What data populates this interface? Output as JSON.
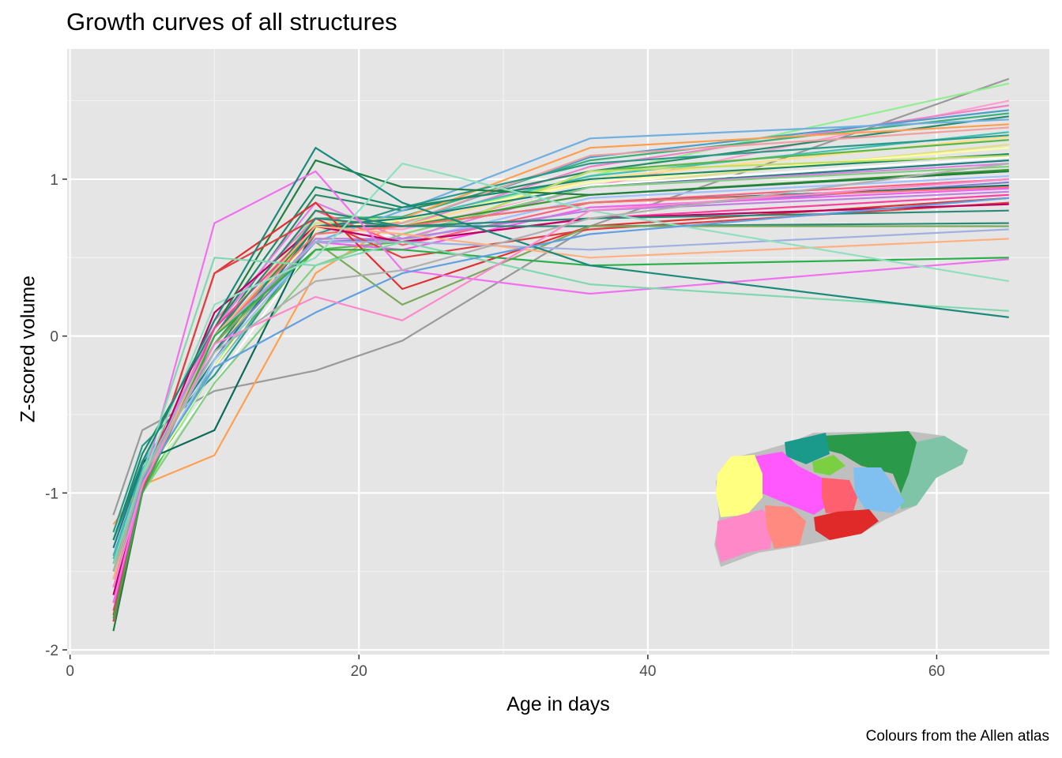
{
  "chart_data": {
    "type": "line",
    "title": "Growth curves of all structures",
    "xlabel": "Age in days",
    "ylabel": "Z-scored volume",
    "caption": "Colours from the Allen atlas",
    "xlim": [
      -0.2,
      67.8
    ],
    "ylim": [
      -2.03,
      1.83
    ],
    "x_ticks": [
      0,
      20,
      40,
      60
    ],
    "y_ticks": [
      -2,
      -1,
      0,
      1
    ],
    "x_tick_labels": [
      "0",
      "20",
      "40",
      "60"
    ],
    "y_tick_labels": [
      "-2",
      "-1",
      "0",
      "1"
    ],
    "grid": true,
    "legend": "none",
    "x": [
      3,
      5,
      10,
      17,
      23,
      36,
      65
    ],
    "series": [
      {
        "color": "#9a9a9a",
        "values": [
          -1.14,
          -0.6,
          -0.35,
          -0.22,
          -0.03,
          0.7,
          1.64
        ]
      },
      {
        "color": "#90ee90",
        "values": [
          -1.65,
          -1.0,
          -0.2,
          0.8,
          0.72,
          1.02,
          1.61
        ]
      },
      {
        "color": "#ff9ecf",
        "values": [
          -1.55,
          -0.95,
          0.05,
          0.7,
          0.68,
          0.95,
          1.5
        ]
      },
      {
        "color": "#ef80c8",
        "values": [
          -1.6,
          -0.98,
          0.1,
          0.75,
          0.7,
          1.08,
          1.47
        ]
      },
      {
        "color": "#4a9fc8",
        "values": [
          -1.4,
          -0.85,
          -0.1,
          0.68,
          0.72,
          1.14,
          1.44
        ]
      },
      {
        "color": "#3ab07a",
        "values": [
          -1.5,
          -0.9,
          -0.05,
          0.75,
          0.76,
          1.12,
          1.42
        ]
      },
      {
        "color": "#2a8a6a",
        "values": [
          -1.45,
          -0.88,
          0.0,
          0.9,
          0.8,
          1.05,
          1.4
        ]
      },
      {
        "color": "#6fb0e0",
        "values": [
          -1.35,
          -0.8,
          -0.2,
          0.6,
          0.8,
          1.26,
          1.38
        ]
      },
      {
        "color": "#ffa050",
        "values": [
          -1.2,
          -0.95,
          -0.76,
          0.4,
          0.75,
          1.2,
          1.35
        ]
      },
      {
        "color": "#f0a0a0",
        "values": [
          -1.5,
          -0.9,
          0.0,
          0.7,
          0.72,
          1.15,
          1.33
        ]
      },
      {
        "color": "#40c0b0",
        "values": [
          -1.42,
          -0.86,
          -0.05,
          0.72,
          0.74,
          1.02,
          1.3
        ]
      },
      {
        "color": "#2a9a8a",
        "values": [
          -1.25,
          -0.7,
          -0.25,
          0.65,
          0.82,
          1.1,
          1.28
        ]
      },
      {
        "color": "#ffe080",
        "values": [
          -1.55,
          -0.92,
          -0.1,
          0.7,
          0.7,
          1.0,
          1.27
        ]
      },
      {
        "color": "#5ab84a",
        "values": [
          -1.7,
          -1.0,
          -0.15,
          0.55,
          0.6,
          1.05,
          1.25
        ]
      },
      {
        "color": "#e0e080",
        "values": [
          -1.5,
          -0.9,
          0.05,
          0.72,
          0.75,
          0.95,
          1.22
        ]
      },
      {
        "color": "#ffffa0",
        "values": [
          -1.6,
          -0.95,
          -0.2,
          0.68,
          0.74,
          0.98,
          1.2
        ]
      },
      {
        "color": "#1a8a6a",
        "values": [
          -1.3,
          -0.75,
          0.05,
          0.95,
          0.82,
          1.0,
          1.16
        ]
      },
      {
        "color": "#c0e060",
        "values": [
          -1.5,
          -0.92,
          -0.1,
          0.62,
          0.6,
          1.05,
          1.15
        ]
      },
      {
        "color": "#ffffff",
        "values": [
          -1.58,
          -0.93,
          -0.3,
          0.6,
          0.65,
          0.96,
          1.14
        ]
      },
      {
        "color": "#1a8080",
        "values": [
          -1.35,
          -0.82,
          -0.15,
          0.7,
          0.75,
          0.95,
          1.12
        ]
      },
      {
        "color": "#e080e0",
        "values": [
          -1.6,
          -0.9,
          0.05,
          0.85,
          0.62,
          0.95,
          1.1
        ]
      },
      {
        "color": "#80d080",
        "values": [
          -1.7,
          -1.0,
          -0.3,
          0.45,
          0.65,
          0.95,
          1.08
        ]
      },
      {
        "color": "#3a9a30",
        "values": [
          -1.5,
          -0.88,
          -0.05,
          0.7,
          0.7,
          0.9,
          1.06
        ]
      },
      {
        "color": "#1f7f40",
        "values": [
          -1.88,
          -1.0,
          0.05,
          1.12,
          0.95,
          0.9,
          1.05
        ]
      },
      {
        "color": "#a0c0ff",
        "values": [
          -1.65,
          -0.95,
          -0.15,
          0.6,
          0.6,
          0.88,
          1.02
        ]
      },
      {
        "color": "#ff6080",
        "values": [
          -1.7,
          -1.0,
          0.0,
          0.8,
          0.58,
          0.85,
          1.0
        ]
      },
      {
        "color": "#8080d0",
        "values": [
          -1.5,
          -0.9,
          -0.1,
          0.6,
          0.62,
          0.8,
          0.98
        ]
      },
      {
        "color": "#0a6a5a",
        "values": [
          -1.3,
          -0.8,
          -0.6,
          0.7,
          0.7,
          0.85,
          0.96
        ]
      },
      {
        "color": "#ff7070",
        "values": [
          -1.6,
          -0.92,
          0.0,
          0.65,
          0.7,
          0.85,
          0.95
        ]
      },
      {
        "color": "#f060f0",
        "values": [
          -1.7,
          -0.98,
          0.0,
          0.6,
          0.55,
          0.82,
          0.94
        ]
      },
      {
        "color": "#c080e0",
        "values": [
          -1.6,
          -0.95,
          -0.05,
          0.62,
          0.62,
          0.8,
          0.92
        ]
      },
      {
        "color": "#ff40a0",
        "values": [
          -1.75,
          -1.0,
          0.05,
          0.7,
          0.6,
          0.75,
          0.9
        ]
      },
      {
        "color": "#e03030",
        "values": [
          -1.78,
          -1.0,
          0.4,
          0.85,
          0.3,
          0.7,
          0.88
        ]
      },
      {
        "color": "#e04040",
        "values": [
          -1.82,
          -1.0,
          0.4,
          0.75,
          0.5,
          0.68,
          0.85
        ]
      },
      {
        "color": "#c00060",
        "values": [
          -1.65,
          -0.95,
          0.15,
          0.7,
          0.6,
          0.75,
          0.84
        ]
      },
      {
        "color": "#2a8a7a",
        "values": [
          -1.45,
          -0.9,
          0.0,
          0.8,
          0.7,
          0.75,
          0.8
        ]
      },
      {
        "color": "#2a8a7a",
        "values": [
          -1.5,
          -0.9,
          -0.1,
          0.75,
          0.7,
          0.7,
          0.72
        ]
      },
      {
        "color": "#7aaa5a",
        "values": [
          -1.55,
          -0.92,
          -0.05,
          0.6,
          0.2,
          0.7,
          0.7
        ]
      },
      {
        "color": "#a0b0e0",
        "values": [
          -1.5,
          -0.9,
          0.0,
          0.6,
          0.6,
          0.55,
          0.68
        ]
      },
      {
        "color": "#ffb080",
        "values": [
          -1.55,
          -0.95,
          0.0,
          0.7,
          0.65,
          0.5,
          0.62
        ]
      },
      {
        "color": "#2ab04a",
        "values": [
          -1.8,
          -1.0,
          0.0,
          0.55,
          0.55,
          0.45,
          0.5
        ]
      },
      {
        "color": "#f070f0",
        "values": [
          -1.7,
          -0.95,
          0.72,
          1.05,
          0.42,
          0.27,
          0.49
        ]
      },
      {
        "color": "#90e0c0",
        "values": [
          -1.5,
          -0.9,
          0.2,
          0.5,
          1.1,
          0.8,
          0.35
        ]
      },
      {
        "color": "#80d8b0",
        "values": [
          -1.45,
          -0.88,
          0.5,
          0.45,
          0.6,
          0.33,
          0.16
        ]
      },
      {
        "color": "#1a8a7a",
        "values": [
          -1.3,
          -0.8,
          0.1,
          1.2,
          0.85,
          0.45,
          0.12
        ]
      },
      {
        "color": "#60a0e0",
        "values": [
          -1.6,
          -0.92,
          -0.2,
          0.15,
          0.4,
          0.65,
          0.88
        ]
      },
      {
        "color": "#ff88cc",
        "values": [
          -1.6,
          -0.95,
          -0.05,
          0.25,
          0.1,
          0.8,
          1.0
        ]
      },
      {
        "color": "#b0b0b0",
        "values": [
          -1.5,
          -0.9,
          -0.1,
          0.35,
          0.42,
          0.75,
          1.1
        ]
      }
    ]
  }
}
